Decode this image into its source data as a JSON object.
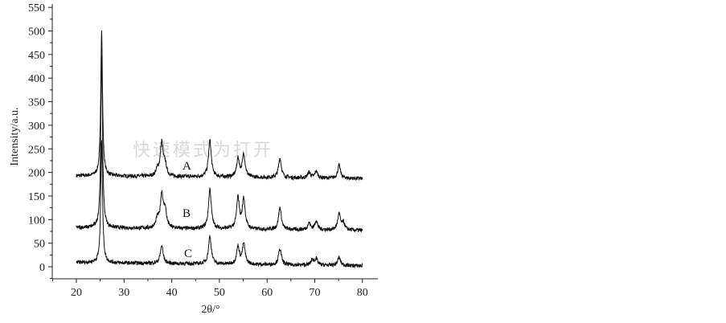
{
  "watermark": "快速模式为打开",
  "chart_data": {
    "type": "line",
    "title": "",
    "xlabel": "2θ/°",
    "ylabel": "Intensity/a.u.",
    "xlim": [
      15,
      82
    ],
    "ylim": [
      -20,
      550
    ],
    "x_ticks": [
      "20",
      "30",
      "40",
      "50",
      "60",
      "70",
      "80"
    ],
    "y_ticks": [
      "0",
      "50",
      "100",
      "150",
      "200",
      "250",
      "300",
      "350",
      "400",
      "450",
      "500",
      "550"
    ],
    "grid": false,
    "legend": "none",
    "line_color": "#111111",
    "x_range": [
      20,
      80
    ],
    "series": [
      {
        "name": "A",
        "baseline_start": 193,
        "baseline_end": 187,
        "peaks": [
          [
            25.3,
            500
          ],
          [
            37.0,
            205
          ],
          [
            37.9,
            262
          ],
          [
            38.6,
            215
          ],
          [
            48.0,
            268
          ],
          [
            53.9,
            228
          ],
          [
            55.1,
            238
          ],
          [
            62.7,
            230
          ],
          [
            68.8,
            200
          ],
          [
            70.3,
            202
          ],
          [
            75.1,
            215
          ]
        ]
      },
      {
        "name": "B",
        "baseline_start": 83,
        "baseline_end": 77,
        "peaks": [
          [
            25.3,
            450
          ],
          [
            37.0,
            100
          ],
          [
            37.9,
            152
          ],
          [
            38.6,
            118
          ],
          [
            48.0,
            165
          ],
          [
            53.9,
            145
          ],
          [
            55.1,
            143
          ],
          [
            62.7,
            125
          ],
          [
            68.8,
            92
          ],
          [
            70.3,
            97
          ],
          [
            75.1,
            112
          ],
          [
            76.0,
            92
          ]
        ]
      },
      {
        "name": "C",
        "baseline_start": 9,
        "baseline_end": 2,
        "peaks": [
          [
            25.3,
            270
          ],
          [
            37.9,
            45
          ],
          [
            48.0,
            65
          ],
          [
            53.9,
            42
          ],
          [
            55.1,
            48
          ],
          [
            62.7,
            38
          ],
          [
            69.5,
            14
          ],
          [
            70.3,
            16
          ],
          [
            75.1,
            20
          ]
        ]
      }
    ]
  }
}
